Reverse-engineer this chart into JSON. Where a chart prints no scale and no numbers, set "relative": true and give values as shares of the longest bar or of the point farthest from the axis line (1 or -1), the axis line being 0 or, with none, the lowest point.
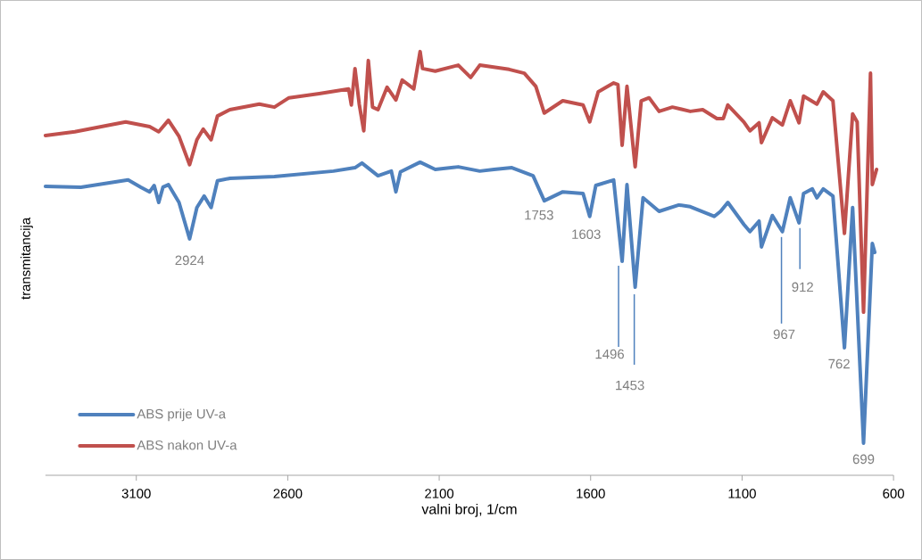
{
  "chart_data": {
    "type": "line",
    "relative": true,
    "xlabel": "valni broj, 1/cm",
    "ylabel": "transmitancija",
    "xlim": [
      3400,
      600
    ],
    "xticks": [
      3100,
      2600,
      2100,
      1600,
      1100,
      600
    ],
    "legend": "bottom left",
    "series": [
      {
        "name": "ABS prije UV-a",
        "color": "#4f81bd",
        "x": [
          3400,
          3283,
          3127,
          3085,
          3056,
          3041,
          3026,
          3012,
          2994,
          2959,
          2924,
          2900,
          2876,
          2853,
          2832,
          2791,
          2644,
          2449,
          2378,
          2355,
          2302,
          2258,
          2243,
          2228,
          2163,
          2113,
          2037,
          1966,
          1919,
          1860,
          1790,
          1753,
          1692,
          1625,
          1603,
          1583,
          1524,
          1496,
          1480,
          1453,
          1427,
          1374,
          1309,
          1271,
          1192,
          1171,
          1147,
          1094,
          1074,
          1044,
          1036,
          1000,
          967,
          941,
          912,
          897,
          868,
          853,
          832,
          800,
          762,
          735,
          699,
          670,
          662
        ],
        "values": [
          0.682,
          0.68,
          0.697,
          0.68,
          0.669,
          0.684,
          0.644,
          0.68,
          0.686,
          0.644,
          0.558,
          0.632,
          0.659,
          0.632,
          0.695,
          0.701,
          0.705,
          0.718,
          0.726,
          0.737,
          0.707,
          0.718,
          0.669,
          0.716,
          0.739,
          0.722,
          0.728,
          0.718,
          0.722,
          0.726,
          0.707,
          0.648,
          0.669,
          0.665,
          0.611,
          0.684,
          0.697,
          0.505,
          0.686,
          0.444,
          0.655,
          0.623,
          0.638,
          0.634,
          0.611,
          0.623,
          0.644,
          0.592,
          0.575,
          0.6,
          0.539,
          0.613,
          0.575,
          0.655,
          0.596,
          0.665,
          0.676,
          0.655,
          0.676,
          0.659,
          0.301,
          0.632,
          0.076,
          0.547,
          0.526
        ]
      },
      {
        "name": "ABS nakon UV-a",
        "color": "#c0504d",
        "x": [
          3400,
          3303,
          3185,
          3135,
          3056,
          3026,
          2994,
          2959,
          2924,
          2900,
          2879,
          2853,
          2832,
          2791,
          2694,
          2644,
          2596,
          2496,
          2399,
          2390,
          2378,
          2364,
          2349,
          2334,
          2320,
          2302,
          2272,
          2243,
          2222,
          2184,
          2163,
          2155,
          2113,
          2037,
          1996,
          1966,
          1869,
          1819,
          1781,
          1753,
          1692,
          1625,
          1603,
          1575,
          1524,
          1510,
          1496,
          1480,
          1453,
          1433,
          1407,
          1374,
          1330,
          1271,
          1230,
          1183,
          1162,
          1147,
          1094,
          1074,
          1044,
          1036,
          1000,
          967,
          941,
          912,
          897,
          853,
          832,
          800,
          762,
          735,
          720,
          699,
          676,
          670,
          656
        ],
        "values": [
          0.802,
          0.811,
          0.827,
          0.834,
          0.823,
          0.811,
          0.838,
          0.8,
          0.733,
          0.792,
          0.817,
          0.792,
          0.848,
          0.863,
          0.876,
          0.869,
          0.891,
          0.901,
          0.912,
          0.874,
          0.96,
          0.876,
          0.813,
          0.979,
          0.869,
          0.863,
          0.916,
          0.886,
          0.933,
          0.912,
          1,
          0.96,
          0.954,
          0.968,
          0.939,
          0.968,
          0.958,
          0.949,
          0.918,
          0.855,
          0.884,
          0.874,
          0.834,
          0.905,
          0.926,
          0.922,
          0.779,
          0.918,
          0.728,
          0.884,
          0.891,
          0.859,
          0.869,
          0.859,
          0.863,
          0.842,
          0.842,
          0.874,
          0.834,
          0.813,
          0.832,
          0.785,
          0.844,
          0.827,
          0.884,
          0.832,
          0.895,
          0.876,
          0.905,
          0.884,
          0.571,
          0.853,
          0.834,
          0.385,
          0.949,
          0.686,
          0.722
        ]
      }
    ],
    "annotations": [
      {
        "text": "2924",
        "x": 2924,
        "y": 0.558
      },
      {
        "text": "1753",
        "x": 1753,
        "y": 0.648
      },
      {
        "text": "1603",
        "x": 1603,
        "y": 0.611
      },
      {
        "text": "1496",
        "x": 1496,
        "y": 0.505
      },
      {
        "text": "1453",
        "x": 1453,
        "y": 0.444
      },
      {
        "text": "967",
        "x": 967,
        "y": 0.575
      },
      {
        "text": "912",
        "x": 912,
        "y": 0.596
      },
      {
        "text": "762",
        "x": 762,
        "y": 0.301
      },
      {
        "text": "699",
        "x": 699,
        "y": 0.076
      }
    ]
  }
}
